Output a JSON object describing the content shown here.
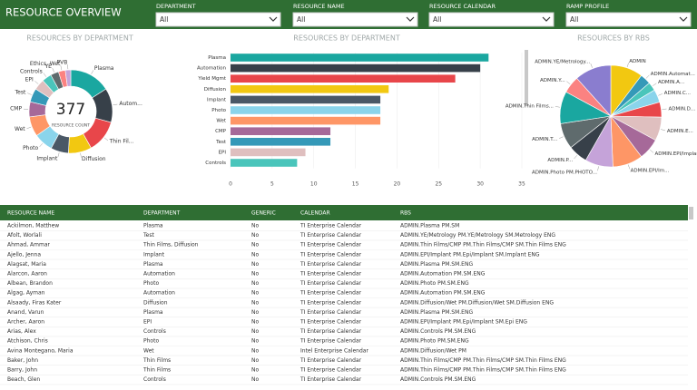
{
  "header": {
    "title": "RESOURCE OVERVIEW",
    "filters": [
      {
        "label": "DEPARTMENT",
        "value": "All"
      },
      {
        "label": "RESOURCE NAME",
        "value": "All"
      },
      {
        "label": "RESOURCE CALENDAR",
        "value": "All"
      },
      {
        "label": "RAMP PROFILE",
        "value": "All"
      }
    ]
  },
  "chart_data": [
    {
      "type": "donut",
      "title": "RESOURCES BY DEPARTMENT",
      "center_value": 377,
      "center_label": "RESOURCE COUNT",
      "categories": [
        "Plasma",
        "Autom...",
        "Thin Fil...",
        "Diffusion",
        "Implant",
        "Photo",
        "Wet",
        "CMP",
        "Test",
        "EPI",
        "Controls",
        "YE",
        "Ethics, Wet",
        "PVB"
      ],
      "values": [
        60,
        50,
        48,
        34,
        26,
        28,
        29,
        22,
        20,
        16,
        14,
        12,
        10,
        8
      ],
      "colors": [
        "#1aa7a0",
        "#374049",
        "#e8464a",
        "#f2c811",
        "#4a5866",
        "#8ad4eb",
        "#fe9666",
        "#a66999",
        "#3599b8",
        "#dfbfbf",
        "#4ac5bb",
        "#5f6b6d",
        "#fb8281",
        "#c5a3d9"
      ]
    },
    {
      "type": "bar",
      "title": "RESOURCES BY DEPARTMENT",
      "categories": [
        "Plasma",
        "Automation",
        "Yield Mgmt",
        "Diffusion",
        "Implant",
        "Photo",
        "Wet",
        "CMP",
        "Test",
        "EPI",
        "Controls"
      ],
      "values": [
        31,
        30,
        27,
        19,
        18,
        18,
        18,
        12,
        12,
        9,
        8
      ],
      "colors": [
        "#1aa7a0",
        "#374049",
        "#e8464a",
        "#f2c811",
        "#4a5866",
        "#8ad4eb",
        "#fe9666",
        "#a66999",
        "#3599b8",
        "#dfbfbf",
        "#4ac5bb"
      ],
      "xlim": [
        0,
        35
      ],
      "xticks": [
        0,
        5,
        10,
        15,
        20,
        25,
        30,
        35
      ],
      "grid": true
    },
    {
      "type": "pie",
      "title": "RESOURCES BY RBS",
      "categories": [
        "ADMIN",
        "ADMIN.Automat...",
        "ADMIN.A...",
        "ADMIN.C...",
        "ADMIN.D...",
        "ADMIN.E...",
        "ADMIN.EPI/Implant...",
        "ADMIN.EPI/Im...",
        "ADMIN.Photo PM.PHOTO...",
        "ADMIN.P...",
        "ADMIN.T...",
        "ADMIN.Thin Films...",
        "ADMIN.Y...",
        "ADMIN.YE/Metrology..."
      ],
      "values": [
        30,
        10,
        8,
        12,
        14,
        22,
        20,
        28,
        26,
        18,
        24,
        30,
        16,
        34
      ],
      "colors": [
        "#f2c811",
        "#3599b8",
        "#4ac5bb",
        "#8ad4eb",
        "#e8464a",
        "#dfbfbf",
        "#a66999",
        "#fe9666",
        "#c5a3d9",
        "#374049",
        "#5f6b6d",
        "#1aa7a0",
        "#fb8281",
        "#8a7dcf"
      ]
    }
  ],
  "table": {
    "columns": [
      "RESOURCE NAME",
      "DEPARTMENT",
      "GENERIC",
      "CALENDAR",
      "RBS"
    ],
    "rows": [
      [
        "Ackilmon, Matthew",
        "Plasma",
        "No",
        "TI Enterprise Calendar",
        "ADMIN.Plasma PM.SM"
      ],
      [
        "Afolt, Worlali",
        "Test",
        "No",
        "TI Enterprise Calendar",
        "ADMIN.YE/Metrology PM.YE/Metrology SM.Metrology ENG"
      ],
      [
        "Ahmad, Ammar",
        "Thin Films, Diffusion",
        "No",
        "TI Enterprise Calendar",
        "ADMIN.Thin Films/CMP PM.Thin Films/CMP SM.Thin Films ENG"
      ],
      [
        "Ajello, Jenna",
        "Implant",
        "No",
        "TI Enterprise Calendar",
        "ADMIN.EPI/Implant PM.Epi/Implant SM.Implant ENG"
      ],
      [
        "Alagsat, Maria",
        "Plasma",
        "No",
        "TI Enterprise Calendar",
        "ADMIN.Plasma PM.SM.ENG"
      ],
      [
        "Alarcon, Aaron",
        "Automation",
        "No",
        "TI Enterprise Calendar",
        "ADMIN.Automation PM.SM.ENG"
      ],
      [
        "Albean, Brandon",
        "Photo",
        "No",
        "TI Enterprise Calendar",
        "ADMIN.Photo PM.SM.ENG"
      ],
      [
        "Algag, Ayman",
        "Automation",
        "No",
        "TI Enterprise Calendar",
        "ADMIN.Automation PM.SM.ENG"
      ],
      [
        "Alsaady, Firas Kater",
        "Diffusion",
        "No",
        "TI Enterprise Calendar",
        "ADMIN.Diffusion/Wet PM.Diffusion/Wet SM.Diffusion ENG"
      ],
      [
        "Anand, Varun",
        "Plasma",
        "No",
        "TI Enterprise Calendar",
        "ADMIN.Plasma PM.SM.ENG"
      ],
      [
        "Archer, Aaron",
        "EPI",
        "No",
        "TI Enterprise Calendar",
        "ADMIN.EPI/Implant PM.Epi/Implant SM.Epi ENG"
      ],
      [
        "Arias, Alex",
        "Controls",
        "No",
        "TI Enterprise Calendar",
        "ADMIN.Controls PM.SM.ENG"
      ],
      [
        "Atchison, Chris",
        "Photo",
        "No",
        "TI Enterprise Calendar",
        "ADMIN.Photo PM.SM.ENG"
      ],
      [
        "Avina Montegano, Maria",
        "Wet",
        "No",
        "Intel Enterprise Calendar",
        "ADMIN.Diffusion/Wet PM"
      ],
      [
        "Baker, John",
        "Thin Films",
        "No",
        "TI Enterprise Calendar",
        "ADMIN.Thin Films/CMP PM.Thin Films/CMP SM.Thin Films ENG"
      ],
      [
        "Barry, John",
        "Thin Films",
        "No",
        "TI Enterprise Calendar",
        "ADMIN.Thin Films/CMP PM.Thin Films/CMP SM.Thin Films ENG"
      ],
      [
        "Beach, Glen",
        "Controls",
        "No",
        "TI Enterprise Calendar",
        "ADMIN.Controls PM.SM.ENG"
      ]
    ]
  }
}
